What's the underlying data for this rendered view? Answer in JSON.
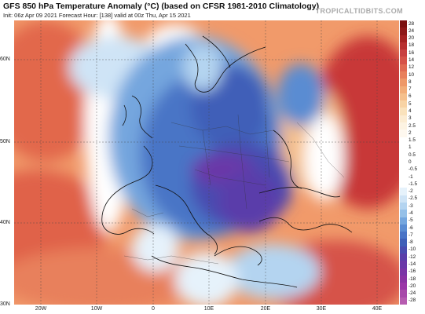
{
  "header": {
    "title": "GFS 850 hPa Temperature Anomaly (°C) (based on CFSR 1981-2010 Climatology)",
    "subtitle": "Init: 06z Apr 09 2021   Forecast Hour: [138]   valid at 00z Thu, Apr 15 2021",
    "site": "TROPICALTIDBITS.COM"
  },
  "map": {
    "lat_labels": [
      "60N",
      "50N",
      "40N",
      "30N"
    ],
    "lon_labels": [
      "20W",
      "10W",
      "0",
      "10E",
      "20E",
      "30E",
      "40E"
    ]
  },
  "colorbar": {
    "labels": [
      "28",
      "24",
      "20",
      "18",
      "16",
      "14",
      "12",
      "10",
      "8",
      "7",
      "6",
      "5",
      "4",
      "3",
      "2.5",
      "2",
      "1.5",
      "1",
      "0.5",
      "0",
      "-0.5",
      "-1",
      "-1.5",
      "-2",
      "-2.5",
      "-3",
      "-4",
      "-5",
      "-6",
      "-7",
      "-8",
      "-10",
      "-12",
      "-14",
      "-16",
      "-18",
      "-20",
      "-24",
      "-28"
    ],
    "colors": [
      "#7a1010",
      "#8e1818",
      "#a52222",
      "#b83030",
      "#c84040",
      "#d65248",
      "#e06a52",
      "#e8805c",
      "#ee9868",
      "#f2ad78",
      "#f5c08c",
      "#f8d3a4",
      "#fae2bc",
      "#fcecd2",
      "#fdf3e2",
      "#fef8ef",
      "#ffffff",
      "#ffffff",
      "#ffffff",
      "#ffffff",
      "#ffffff",
      "#ffffff",
      "#ffffff",
      "#e6f2fb",
      "#cfe4f6",
      "#b4d4f0",
      "#95c0e8",
      "#74a6de",
      "#5a8cd2",
      "#4a74c6",
      "#3f5fb8",
      "#4a4cb0",
      "#5a3eaa",
      "#6a38a8",
      "#7a34a6",
      "#8a32a4",
      "#9a36a8",
      "#a84aaa",
      "#b65cb0"
    ]
  }
}
